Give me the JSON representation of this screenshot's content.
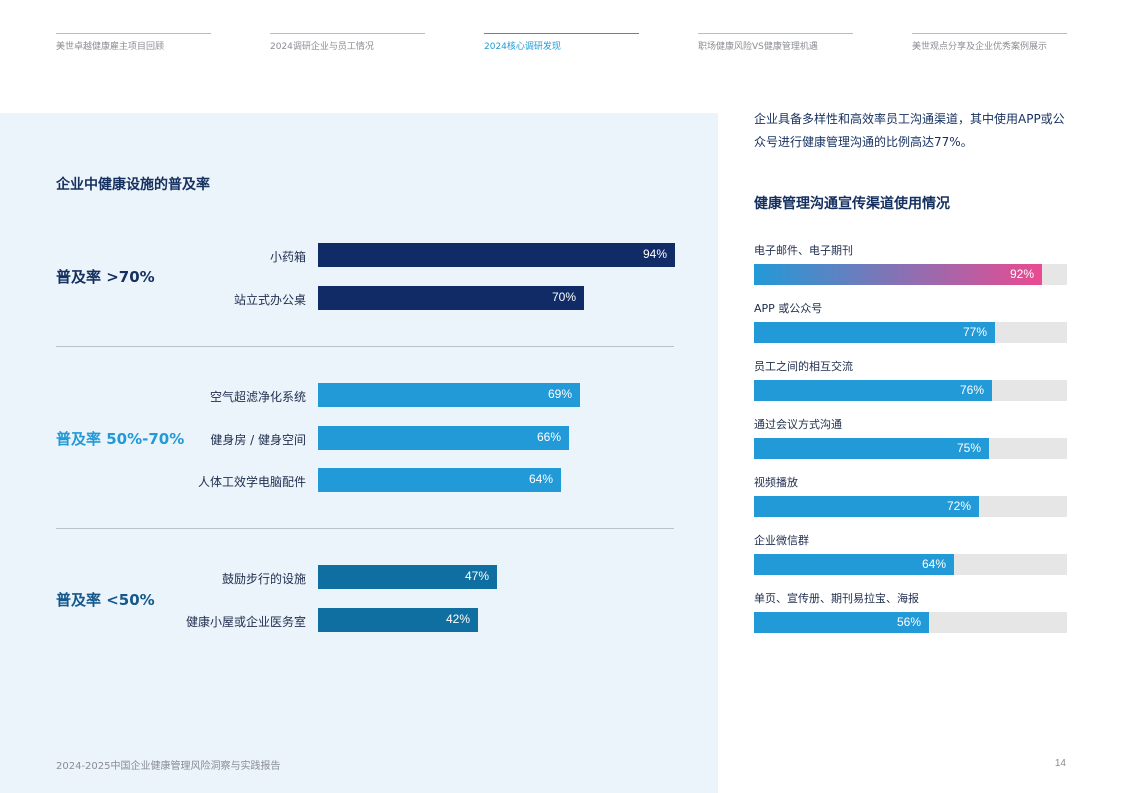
{
  "nav": {
    "items": [
      {
        "label": "美世卓越健康雇主项目回顾"
      },
      {
        "label": "2024调研企业与员工情况"
      },
      {
        "label": "2024核心调研发现"
      },
      {
        "label": "职场健康风险VS健康管理机遇"
      },
      {
        "label": "美世观点分享及企业优秀案例展示"
      }
    ],
    "active_index": 2
  },
  "left": {
    "title": "企业中健康设施的普及率",
    "groups": [
      {
        "label": "普及率 >70%"
      },
      {
        "label": "普及率 50%-70%"
      },
      {
        "label": "普及率 <50%"
      }
    ]
  },
  "right": {
    "intro": "企业具备多样性和高效率员工沟通渠道，其中使用APP或公众号进行健康管理沟通的比例高达77%。",
    "title": "健康管理沟通宣传渠道使用情况"
  },
  "chart_data": [
    {
      "type": "bar",
      "orientation": "horizontal",
      "title": "企业中健康设施的普及率",
      "categories": [
        "小药箱",
        "站立式办公桌",
        "空气超滤净化系统",
        "健身房 / 健身空间",
        "人体工效学电脑配件",
        "鼓励步行的设施",
        "健康小屋或企业医务室"
      ],
      "values": [
        94,
        70,
        69,
        66,
        64,
        47,
        42
      ],
      "value_labels": [
        "94%",
        "70%",
        "69%",
        "66%",
        "64%",
        "47%",
        "42%"
      ],
      "groups": [
        0,
        0,
        1,
        1,
        1,
        2,
        2
      ],
      "group_colors": [
        "#112b67",
        "#229ad7",
        "#0e6fa0"
      ],
      "xlim": [
        0,
        100
      ]
    },
    {
      "type": "bar",
      "orientation": "horizontal",
      "title": "健康管理沟通宣传渠道使用情况",
      "categories": [
        "电子邮件、电子期刊",
        "APP 或公众号",
        "员工之间的相互交流",
        "通过会议方式沟通",
        "视频播放",
        "企业微信群",
        "单页、宣传册、期刊易拉宝、海报"
      ],
      "values": [
        92,
        77,
        76,
        75,
        72,
        64,
        56
      ],
      "value_labels": [
        "92%",
        "77%",
        "76%",
        "75%",
        "72%",
        "64%",
        "56%"
      ],
      "xlim": [
        0,
        100
      ],
      "bar_color": "#229ad7",
      "highlight_gradient": [
        "#229ad7",
        "#ea4a91"
      ],
      "track_color": "#e6e6e6"
    }
  ],
  "footer": {
    "text": "2024-2025中国企业健康管理风险洞察与实践报告",
    "page": "14"
  }
}
